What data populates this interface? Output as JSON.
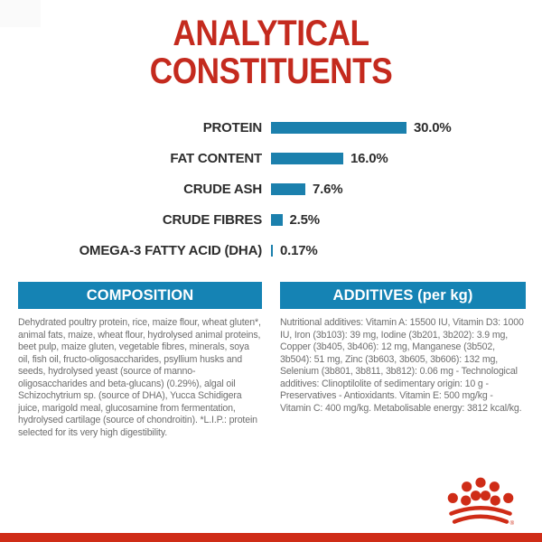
{
  "page": {
    "title_line1": "ANALYTICAL",
    "title_line2": "CONSTITUENTS"
  },
  "colors": {
    "brand_red": "#c42a1e",
    "bar_red": "#cf2c17",
    "brand_blue": "#1583b4",
    "bar_blue": "#1b80ad",
    "label_dark": "#2d2d2d",
    "body_gray": "#6e6e6e"
  },
  "chart_data": {
    "type": "bar",
    "orientation": "horizontal",
    "title": "ANALYTICAL CONSTITUENTS",
    "categories": [
      "PROTEIN",
      "FAT CONTENT",
      "CRUDE ASH",
      "CRUDE FIBRES",
      "OMEGA-3 FATTY ACID (DHA)"
    ],
    "values": [
      30.0,
      16.0,
      7.6,
      2.5,
      0.17
    ],
    "value_labels": [
      "30.0%",
      "16.0%",
      "7.6%",
      "2.5%",
      "0.17%"
    ],
    "unit": "%",
    "xlim": [
      0,
      30
    ],
    "grid": false,
    "legend": false,
    "bar_color": "#1b80ad"
  },
  "sections": {
    "composition": {
      "header": "COMPOSITION",
      "body": "Dehydrated poultry protein, rice, maize flour, wheat gluten*, animal fats, maize, wheat flour, hydrolysed animal proteins, beet pulp, maize gluten, vegetable fibres, minerals, soya oil, fish oil, fructo-oligosaccharides, psyllium husks and seeds, hydrolysed yeast (source of manno-oligosaccharides and beta-glucans) (0.29%), algal oil Schizochytrium sp. (source of DHA), Yucca Schidigera juice, marigold meal, glucosamine from fermentation, hydrolysed cartilage (source of chondroitin). *L.I.P.: protein selected for its very high digestibility."
    },
    "additives": {
      "header": "ADDITIVES (per kg)",
      "body": "Nutritional additives: Vitamin A: 15500 IU, Vitamin D3: 1000 IU, Iron (3b103): 39 mg, Iodine (3b201, 3b202): 3.9 mg, Copper (3b405, 3b406): 12 mg, Manganese (3b502, 3b504): 51 mg, Zinc (3b603, 3b605, 3b606): 132 mg, Selenium (3b801, 3b811, 3b812): 0.06 mg - Technological additives: Clinoptilolite of sedimentary origin: 10 g - Preservatives - Antioxidants. Vitamin E: 500 mg/kg - Vitamin C: 400 mg/kg. Metabolisable energy: 3812 kcal/kg."
    }
  },
  "footer": {
    "logo": "royal-canin-crown",
    "registered_mark": "®"
  }
}
